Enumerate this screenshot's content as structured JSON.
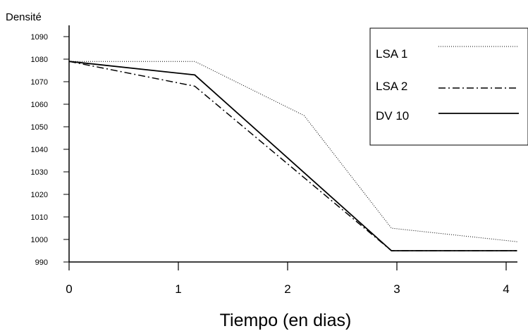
{
  "chart_data": {
    "type": "line",
    "ylabel": "Densité",
    "xlabel": "Tiempo (en dias)",
    "xlim": [
      0,
      4
    ],
    "ylim": [
      990,
      1090
    ],
    "xticks": [
      0,
      1,
      2,
      3,
      4
    ],
    "yticks": [
      990,
      1000,
      1010,
      1020,
      1030,
      1040,
      1050,
      1060,
      1070,
      1080,
      1090
    ],
    "grid": false,
    "legend_position": "top-right",
    "series": [
      {
        "name": "LSA 1",
        "style": "dotted",
        "x": [
          0,
          1.15,
          2.15,
          2.95,
          4.1
        ],
        "y": [
          1079,
          1079,
          1055,
          1005,
          999
        ]
      },
      {
        "name": "LSA 2",
        "style": "dashdot",
        "x": [
          0,
          1.15,
          2.95,
          4.1
        ],
        "y": [
          1079,
          1068,
          995,
          995
        ]
      },
      {
        "name": "DV 10",
        "style": "solid",
        "x": [
          0,
          1.15,
          2.95,
          4.1
        ],
        "y": [
          1079,
          1073,
          995,
          995
        ]
      }
    ]
  }
}
